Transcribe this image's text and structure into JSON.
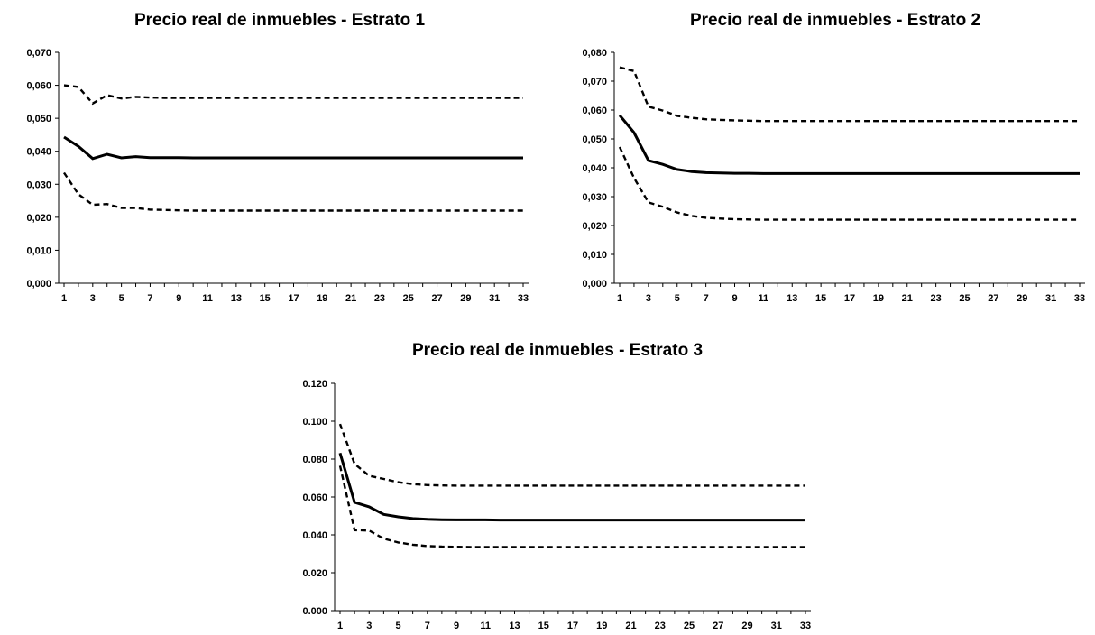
{
  "chart_data": [
    {
      "type": "line",
      "title": "Precio real de inmuebles - Estrato 1",
      "xlabel": "",
      "ylabel": "",
      "ylim": [
        0,
        0.07
      ],
      "yticks": [
        "0,000",
        "0,010",
        "0,020",
        "0,030",
        "0,040",
        "0,050",
        "0,060",
        "0,070"
      ],
      "xticks": [
        "1",
        "3",
        "5",
        "7",
        "9",
        "11",
        "13",
        "15",
        "17",
        "19",
        "21",
        "23",
        "25",
        "27",
        "29",
        "31",
        "33"
      ],
      "x": [
        1,
        2,
        3,
        4,
        5,
        6,
        7,
        8,
        9,
        10,
        11,
        12,
        13,
        14,
        15,
        16,
        17,
        18,
        19,
        20,
        21,
        22,
        23,
        24,
        25,
        26,
        27,
        28,
        29,
        30,
        31,
        32,
        33
      ],
      "grid": false,
      "legend": "none",
      "series": [
        {
          "style": "dashed",
          "values": [
            0.06,
            0.0595,
            0.0545,
            0.057,
            0.056,
            0.0565,
            0.0563,
            0.0562,
            0.0562,
            0.0562,
            0.0562,
            0.0562,
            0.0562,
            0.0562,
            0.0562,
            0.0562,
            0.0562,
            0.0562,
            0.0562,
            0.0562,
            0.0562,
            0.0562,
            0.0562,
            0.0562,
            0.0562,
            0.0562,
            0.0562,
            0.0562,
            0.0562,
            0.0562,
            0.0562,
            0.0562,
            0.0562
          ]
        },
        {
          "style": "solid",
          "values": [
            0.0443,
            0.0415,
            0.0378,
            0.0391,
            0.038,
            0.0384,
            0.0381,
            0.0381,
            0.0381,
            0.038,
            0.038,
            0.038,
            0.038,
            0.038,
            0.038,
            0.038,
            0.038,
            0.038,
            0.038,
            0.038,
            0.038,
            0.038,
            0.038,
            0.038,
            0.038,
            0.038,
            0.038,
            0.038,
            0.038,
            0.038,
            0.038,
            0.038,
            0.038
          ]
        },
        {
          "style": "dashed",
          "values": [
            0.0335,
            0.027,
            0.0238,
            0.024,
            0.0228,
            0.0228,
            0.0223,
            0.0222,
            0.0221,
            0.022,
            0.022,
            0.022,
            0.022,
            0.022,
            0.022,
            0.022,
            0.022,
            0.022,
            0.022,
            0.022,
            0.022,
            0.022,
            0.022,
            0.022,
            0.022,
            0.022,
            0.022,
            0.022,
            0.022,
            0.022,
            0.022,
            0.022,
            0.022
          ]
        }
      ]
    },
    {
      "type": "line",
      "title": "Precio real de inmuebles - Estrato 2",
      "xlabel": "",
      "ylabel": "",
      "ylim": [
        0,
        0.08
      ],
      "yticks": [
        "0,000",
        "0,010",
        "0,020",
        "0,030",
        "0,040",
        "0,050",
        "0,060",
        "0,070",
        "0,080"
      ],
      "xticks": [
        "1",
        "3",
        "5",
        "7",
        "9",
        "11",
        "13",
        "15",
        "17",
        "19",
        "21",
        "23",
        "25",
        "27",
        "29",
        "31",
        "33"
      ],
      "x": [
        1,
        2,
        3,
        4,
        5,
        6,
        7,
        8,
        9,
        10,
        11,
        12,
        13,
        14,
        15,
        16,
        17,
        18,
        19,
        20,
        21,
        22,
        23,
        24,
        25,
        26,
        27,
        28,
        29,
        30,
        31,
        32,
        33
      ],
      "grid": false,
      "legend": "none",
      "series": [
        {
          "style": "dashed",
          "values": [
            0.0748,
            0.0735,
            0.0612,
            0.0598,
            0.058,
            0.0573,
            0.0568,
            0.0566,
            0.0564,
            0.0563,
            0.0562,
            0.0562,
            0.0562,
            0.0562,
            0.0562,
            0.0562,
            0.0562,
            0.0562,
            0.0562,
            0.0562,
            0.0562,
            0.0562,
            0.0562,
            0.0562,
            0.0562,
            0.0562,
            0.0562,
            0.0562,
            0.0562,
            0.0562,
            0.0562,
            0.0562,
            0.0562
          ]
        },
        {
          "style": "solid",
          "values": [
            0.0582,
            0.0522,
            0.0425,
            0.0412,
            0.0394,
            0.0387,
            0.0383,
            0.0382,
            0.0381,
            0.0381,
            0.038,
            0.038,
            0.038,
            0.038,
            0.038,
            0.038,
            0.038,
            0.038,
            0.038,
            0.038,
            0.038,
            0.038,
            0.038,
            0.038,
            0.038,
            0.038,
            0.038,
            0.038,
            0.038,
            0.038,
            0.038,
            0.038,
            0.038
          ]
        },
        {
          "style": "dashed",
          "values": [
            0.0472,
            0.0365,
            0.028,
            0.0265,
            0.0245,
            0.0233,
            0.0227,
            0.0224,
            0.0222,
            0.0221,
            0.022,
            0.022,
            0.022,
            0.022,
            0.022,
            0.022,
            0.022,
            0.022,
            0.022,
            0.022,
            0.022,
            0.022,
            0.022,
            0.022,
            0.022,
            0.022,
            0.022,
            0.022,
            0.022,
            0.022,
            0.022,
            0.022,
            0.022
          ]
        }
      ]
    },
    {
      "type": "line",
      "title": "Precio real de inmuebles - Estrato 3",
      "xlabel": "",
      "ylabel": "",
      "ylim": [
        0,
        0.12
      ],
      "yticks": [
        "0.000",
        "0.020",
        "0.040",
        "0.060",
        "0.080",
        "0.100",
        "0.120"
      ],
      "xticks": [
        "1",
        "3",
        "5",
        "7",
        "9",
        "11",
        "13",
        "15",
        "17",
        "19",
        "21",
        "23",
        "25",
        "27",
        "29",
        "31",
        "33"
      ],
      "x": [
        1,
        2,
        3,
        4,
        5,
        6,
        7,
        8,
        9,
        10,
        11,
        12,
        13,
        14,
        15,
        16,
        17,
        18,
        19,
        20,
        21,
        22,
        23,
        24,
        25,
        26,
        27,
        28,
        29,
        30,
        31,
        32,
        33
      ],
      "grid": false,
      "legend": "none",
      "series": [
        {
          "style": "dashed",
          "values": [
            0.0985,
            0.0775,
            0.0712,
            0.0695,
            0.0678,
            0.0668,
            0.0663,
            0.0661,
            0.066,
            0.066,
            0.066,
            0.066,
            0.066,
            0.066,
            0.066,
            0.066,
            0.066,
            0.066,
            0.066,
            0.066,
            0.066,
            0.066,
            0.066,
            0.066,
            0.066,
            0.066,
            0.066,
            0.066,
            0.066,
            0.066,
            0.066,
            0.066,
            0.066
          ]
        },
        {
          "style": "solid",
          "values": [
            0.0832,
            0.0572,
            0.0548,
            0.0508,
            0.0495,
            0.0486,
            0.0482,
            0.048,
            0.0479,
            0.0479,
            0.0479,
            0.0478,
            0.0478,
            0.0478,
            0.0478,
            0.0478,
            0.0478,
            0.0478,
            0.0478,
            0.0478,
            0.0478,
            0.0478,
            0.0478,
            0.0478,
            0.0478,
            0.0478,
            0.0478,
            0.0478,
            0.0478,
            0.0478,
            0.0478,
            0.0478,
            0.0478
          ]
        },
        {
          "style": "dashed",
          "values": [
            0.0765,
            0.0425,
            0.0423,
            0.038,
            0.036,
            0.0348,
            0.0341,
            0.0338,
            0.0337,
            0.0336,
            0.0336,
            0.0336,
            0.0336,
            0.0336,
            0.0336,
            0.0336,
            0.0336,
            0.0336,
            0.0336,
            0.0336,
            0.0336,
            0.0336,
            0.0336,
            0.0336,
            0.0336,
            0.0336,
            0.0336,
            0.0336,
            0.0336,
            0.0336,
            0.0336,
            0.0336,
            0.0336
          ]
        }
      ]
    }
  ]
}
